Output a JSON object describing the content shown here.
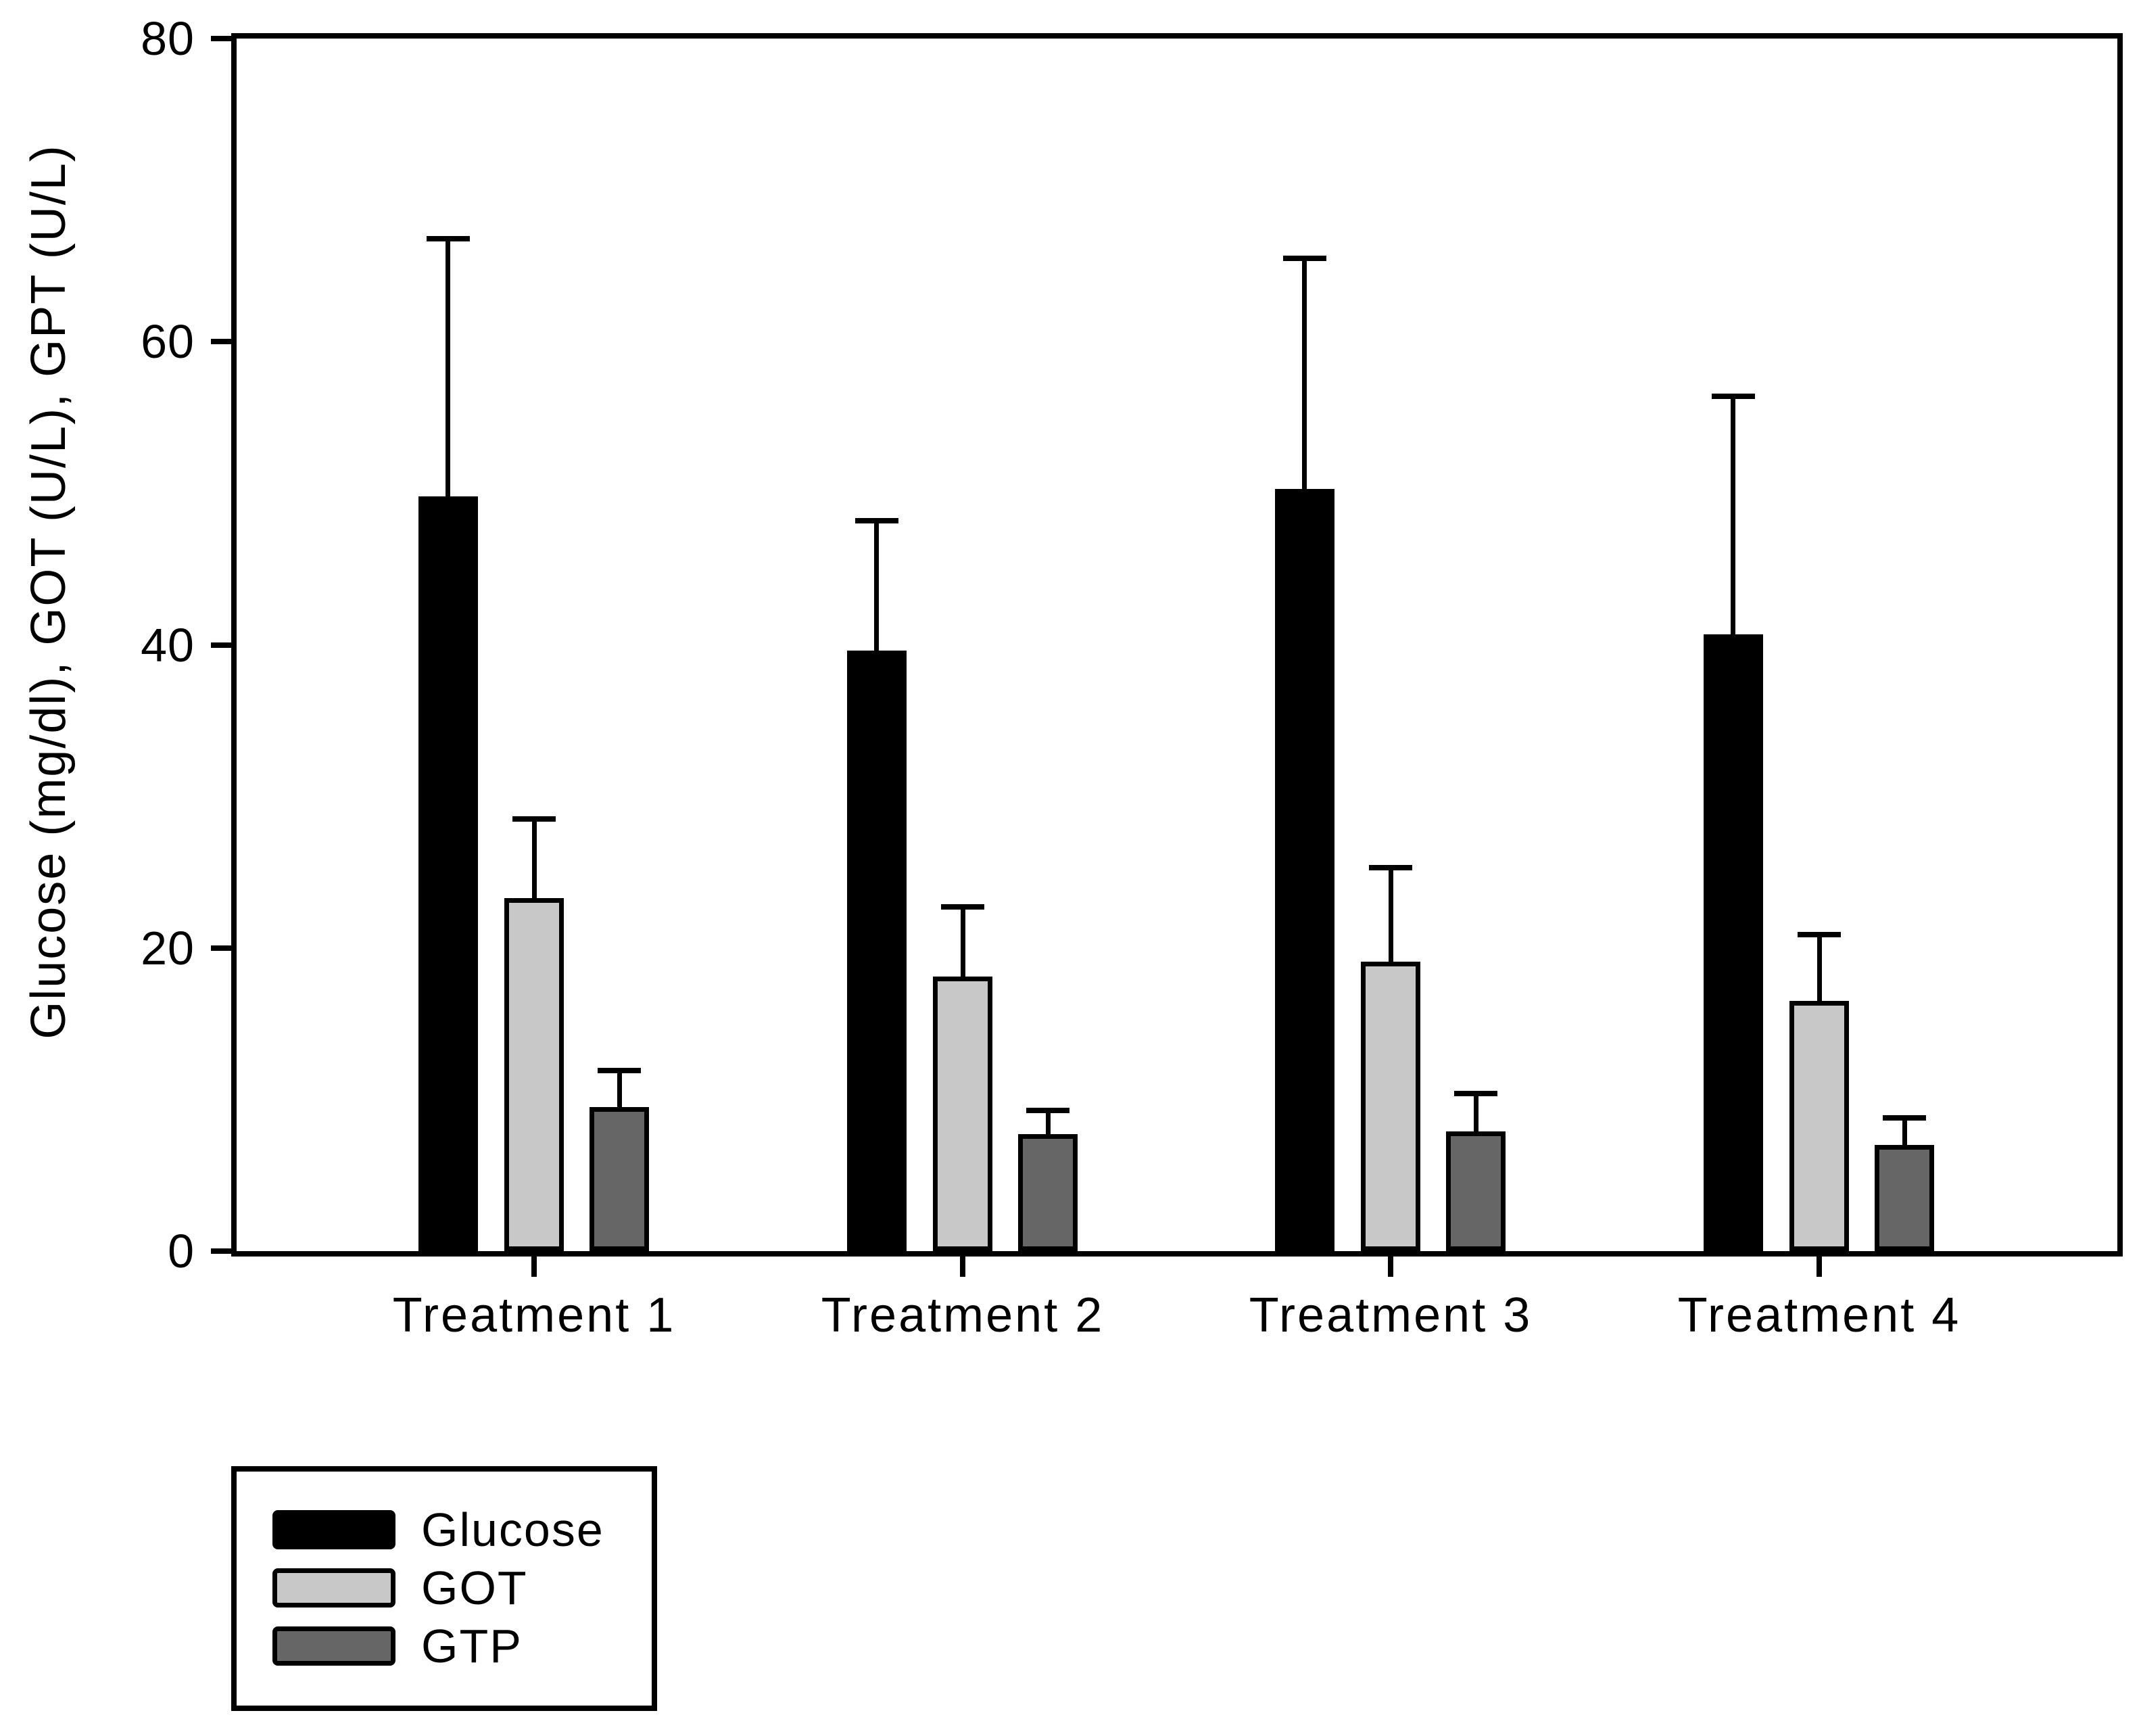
{
  "figure": {
    "background_color": "#ffffff",
    "axis_color": "#000000",
    "text_color": "#000000"
  },
  "chart_data": {
    "type": "bar",
    "title": "",
    "categories": [
      "Treatment 1",
      "Treatment 2",
      "Treatment 3",
      "Treatment 4"
    ],
    "series": [
      {
        "name": "Glucose",
        "color": "#000000",
        "values": [
          49.8,
          39.6,
          50.3,
          40.7
        ],
        "errors": [
          17.0,
          8.6,
          15.2,
          15.7
        ]
      },
      {
        "name": "GOT",
        "color": "#c8c8c8",
        "values": [
          23.3,
          18.1,
          19.1,
          16.5
        ],
        "errors": [
          5.2,
          4.6,
          6.2,
          4.4
        ]
      },
      {
        "name": "GTP",
        "color": "#666666",
        "values": [
          9.5,
          7.7,
          7.9,
          7.0
        ],
        "errors": [
          2.4,
          1.6,
          2.5,
          1.8
        ]
      }
    ],
    "xlabel": "",
    "ylabel": "Glucose (mg/dl), GOT (U/L), GPT (U/L)",
    "ylim": [
      0,
      80
    ],
    "yticks": [
      "0",
      "20",
      "40",
      "60",
      "80"
    ],
    "grid": false,
    "error_bars": "upper only, with caps",
    "legend": {
      "position": "bottom-left",
      "entries": [
        "Glucose",
        "GOT",
        "GTP"
      ]
    }
  }
}
